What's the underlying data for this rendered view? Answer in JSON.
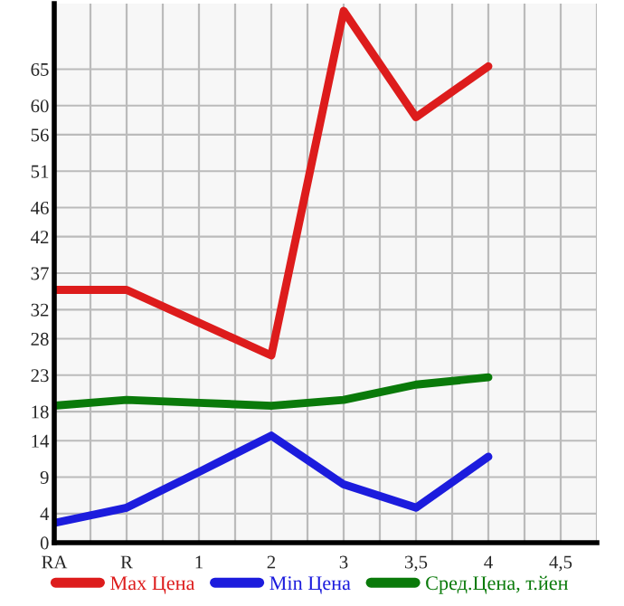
{
  "chart_data": {
    "type": "line",
    "categories": [
      "RA",
      "R",
      "1",
      "2",
      "3",
      "3,5",
      "4",
      "4,5"
    ],
    "series": [
      {
        "name": "Max Цена",
        "color": "#dd1c1c",
        "values": [
          34.7,
          34.7,
          30.2,
          25.7,
          73,
          58.4,
          65.4,
          null
        ]
      },
      {
        "name": "Min Цена",
        "color": "#1c1cdd",
        "values": [
          2.7,
          4.8,
          9.7,
          14.7,
          8.0,
          4.8,
          11.8,
          null
        ]
      },
      {
        "name": "Сред.Цена, т.йен",
        "color": "#0a7a0a",
        "values": [
          18.8,
          19.6,
          19.2,
          18.8,
          19.6,
          21.7,
          22.7,
          null
        ]
      }
    ],
    "ylim": [
      0,
      74
    ],
    "yticks": [
      0,
      4,
      9,
      14,
      18,
      23,
      28,
      32,
      37,
      42,
      46,
      51,
      56,
      60,
      65
    ],
    "grid": true,
    "legend": "bottom",
    "marker": "none",
    "line_style": "solid"
  }
}
